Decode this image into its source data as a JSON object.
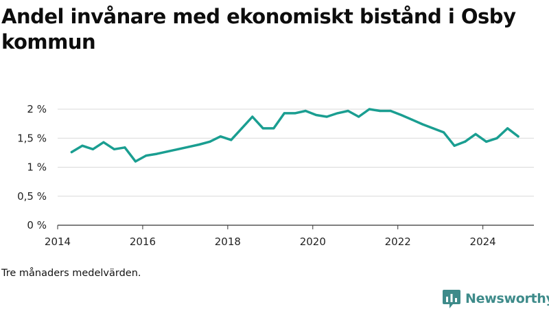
{
  "header": {
    "title": "Andel invånare med ekonomiskt bistånd i Osby kommun"
  },
  "footer": {
    "note": "Tre månaders medelvärden.",
    "brand": "Newsworthy"
  },
  "colors": {
    "line": "#1a9e91",
    "grid": "#d9d9d9",
    "axis": "#333333",
    "brand": "#3e8b8a"
  },
  "chart_data": {
    "type": "line",
    "title": "Andel invånare med ekonomiskt bistånd i Osby kommun",
    "xlabel": "",
    "ylabel": "",
    "xlim": [
      2014,
      2025.2
    ],
    "ylim": [
      0,
      2
    ],
    "x_ticks": [
      {
        "value": 2014,
        "label": "2014"
      },
      {
        "value": 2016,
        "label": "2016"
      },
      {
        "value": 2018,
        "label": "2018"
      },
      {
        "value": 2020,
        "label": "2020"
      },
      {
        "value": 2022,
        "label": "2022"
      },
      {
        "value": 2024,
        "label": "2024"
      }
    ],
    "y_ticks": [
      {
        "value": 0,
        "label": "0 %"
      },
      {
        "value": 0.5,
        "label": "0,5 %"
      },
      {
        "value": 1,
        "label": "1 %"
      },
      {
        "value": 1.5,
        "label": "1,5 %"
      },
      {
        "value": 2,
        "label": "2 %"
      }
    ],
    "grid": true,
    "legend": "none",
    "series": [
      {
        "points": [
          [
            2014.33,
            1.26
          ],
          [
            2014.58,
            1.37
          ],
          [
            2014.83,
            1.31
          ],
          [
            2015.08,
            1.43
          ],
          [
            2015.33,
            1.31
          ],
          [
            2015.58,
            1.34
          ],
          [
            2015.83,
            1.1
          ],
          [
            2016.08,
            1.2
          ],
          [
            2016.33,
            1.23
          ],
          [
            2016.58,
            1.27
          ],
          [
            2016.83,
            1.31
          ],
          [
            2017.08,
            1.35
          ],
          [
            2017.33,
            1.39
          ],
          [
            2017.58,
            1.44
          ],
          [
            2017.83,
            1.53
          ],
          [
            2018.08,
            1.47
          ],
          [
            2018.33,
            1.67
          ],
          [
            2018.58,
            1.87
          ],
          [
            2018.83,
            1.67
          ],
          [
            2019.08,
            1.67
          ],
          [
            2019.33,
            1.93
          ],
          [
            2019.58,
            1.93
          ],
          [
            2019.83,
            1.97
          ],
          [
            2020.08,
            1.9
          ],
          [
            2020.33,
            1.87
          ],
          [
            2020.58,
            1.93
          ],
          [
            2020.83,
            1.97
          ],
          [
            2021.08,
            1.87
          ],
          [
            2021.33,
            2.0
          ],
          [
            2021.58,
            1.97
          ],
          [
            2021.83,
            1.97
          ],
          [
            2022.08,
            1.9
          ],
          [
            2022.33,
            1.82
          ],
          [
            2022.58,
            1.74
          ],
          [
            2022.83,
            1.67
          ],
          [
            2023.08,
            1.6
          ],
          [
            2023.33,
            1.37
          ],
          [
            2023.58,
            1.44
          ],
          [
            2023.83,
            1.57
          ],
          [
            2024.08,
            1.44
          ],
          [
            2024.33,
            1.5
          ],
          [
            2024.58,
            1.67
          ],
          [
            2024.83,
            1.53
          ]
        ]
      }
    ]
  }
}
